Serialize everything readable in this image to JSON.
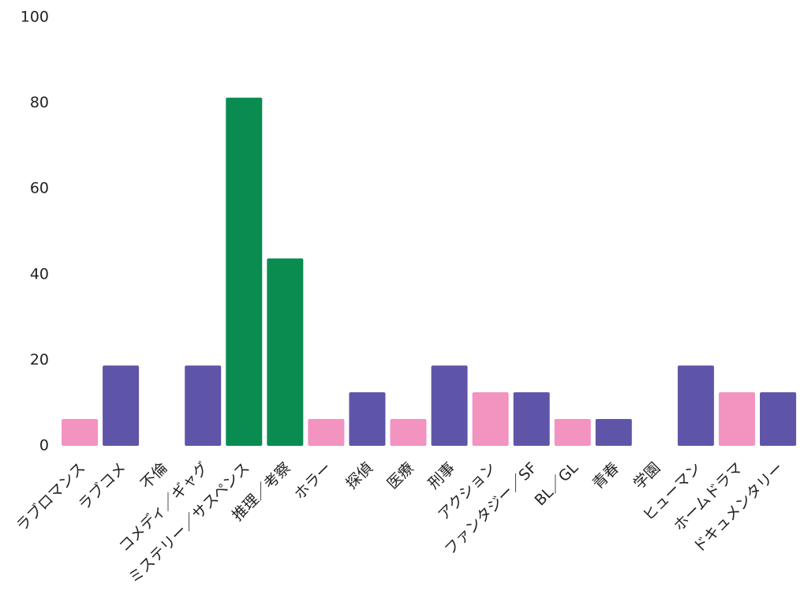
{
  "chart_data": {
    "type": "bar",
    "categories": [
      "ラブロマンス",
      "ラブコメ",
      "不倫",
      "コメディ／ギャグ",
      "ミステリー／サスペンス",
      "推理／考察",
      "ホラー",
      "探偵",
      "医療",
      "刑事",
      "アクション",
      "ファンタジー／SF",
      "BL／GL",
      "青春",
      "学園",
      "ヒューマン",
      "ホームドラマ",
      "ドキュメンタリー"
    ],
    "values": [
      6.25,
      18.75,
      0,
      18.75,
      81.25,
      43.75,
      6.25,
      12.5,
      6.25,
      18.75,
      12.5,
      12.5,
      6.25,
      6.25,
      0,
      18.75,
      12.5,
      12.5
    ],
    "bar_colors": [
      "#f293c0",
      "#5f55a8",
      "#5f55a8",
      "#5f55a8",
      "#0a8c50",
      "#0a8c50",
      "#f293c0",
      "#5f55a8",
      "#f293c0",
      "#5f55a8",
      "#f293c0",
      "#5f55a8",
      "#f293c0",
      "#5f55a8",
      "#5f55a8",
      "#5f55a8",
      "#f293c0",
      "#5f55a8"
    ],
    "yticks": [
      0,
      20,
      40,
      60,
      80,
      100
    ],
    "ylim": [
      0,
      100
    ],
    "grid": false,
    "title": "",
    "xlabel": "",
    "ylabel": ""
  }
}
